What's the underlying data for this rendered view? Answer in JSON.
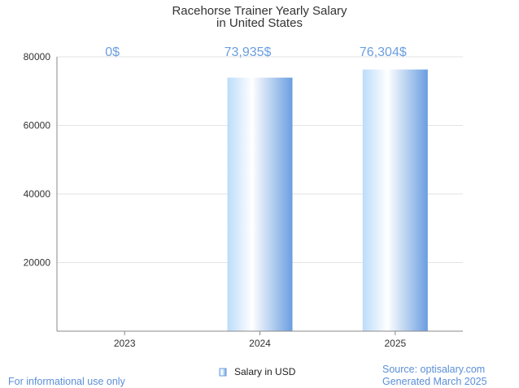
{
  "chart_data": {
    "type": "bar",
    "title": [
      "Racehorse Trainer Yearly Salary",
      "in United States"
    ],
    "categories": [
      "2023",
      "2024",
      "2025"
    ],
    "series": [
      {
        "name": "Salary in USD",
        "values": [
          0,
          73935,
          76304
        ]
      }
    ],
    "data_labels": [
      "0$",
      "73,935$",
      "76,304$"
    ],
    "y_ticks": [
      "20000",
      "40000",
      "60000",
      "80000"
    ],
    "ylim": [
      0,
      80000
    ],
    "grid": true,
    "legend_position": "bottom-center"
  },
  "footer": {
    "disclaimer": "For informational use only",
    "source": "Source: optisalary.com",
    "generated": "Generated March 2025"
  },
  "colors": {
    "bar_light": "#ffffff",
    "bar_mid": "#aed3f7",
    "bar_dark": "#6a9ee0",
    "label": "#6a9ee0"
  }
}
